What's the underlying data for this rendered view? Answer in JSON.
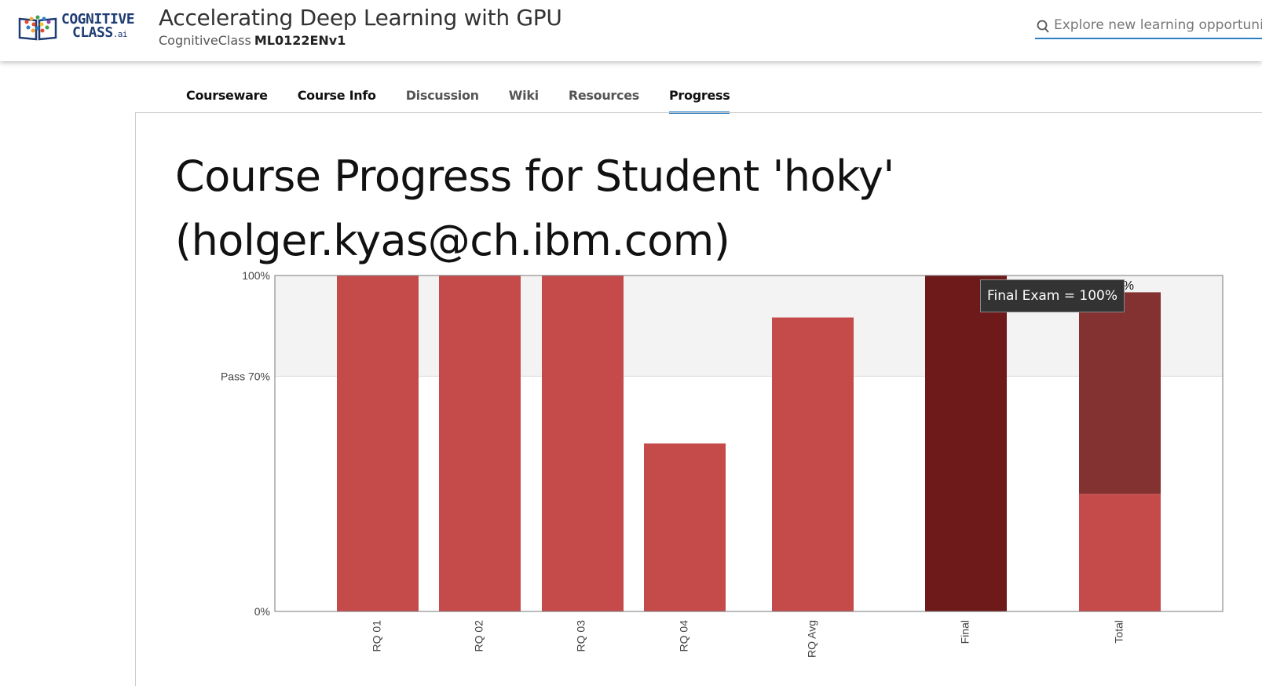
{
  "header": {
    "logo_line1": "COGNITIVE",
    "logo_line2": "CLASS",
    "logo_suffix": ".ai",
    "course_title": "Accelerating Deep Learning with GPU",
    "org": "CognitiveClass",
    "course_code": "ML0122ENv1",
    "search_placeholder": "Explore new learning opportunities"
  },
  "tabs": [
    {
      "label": "Courseware"
    },
    {
      "label": "Course Info"
    },
    {
      "label": "Discussion"
    },
    {
      "label": "Wiki"
    },
    {
      "label": "Resources"
    },
    {
      "label": "Progress"
    }
  ],
  "page_title": "Course Progress for Student 'hoky' (holger.kyas@ch.ibm.com)",
  "tooltip": "Final Exam = 100%",
  "colors": {
    "bar": "#c54b4b",
    "final_bar": "#6e1a1a",
    "total_bar_top": "#833131",
    "accent": "#2b7fc3"
  },
  "chart_data": {
    "type": "bar",
    "categories": [
      "RQ 01",
      "RQ 02",
      "RQ 03",
      "RQ 04",
      "RQ Avg",
      "Final",
      "Total"
    ],
    "values": [
      100,
      100,
      100,
      50,
      87.5,
      100,
      95
    ],
    "total_stack": {
      "lower": 35,
      "upper": 60
    },
    "y_ticks": [
      {
        "label": "100%",
        "value": 100
      },
      {
        "label": "Pass 70%",
        "value": 70
      },
      {
        "label": "0%",
        "value": 0
      }
    ],
    "ylim": [
      0,
      100
    ],
    "pass_threshold": 70,
    "total_label": "95%",
    "grid": false
  }
}
